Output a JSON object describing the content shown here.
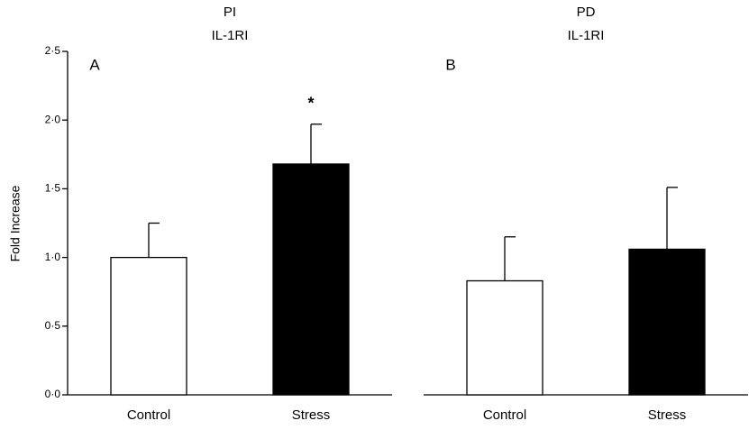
{
  "chart_data": [
    {
      "type": "bar",
      "title": "PI",
      "subtitle": "IL-1RI",
      "panel_label": "A",
      "ylabel": "Fold Increase",
      "categories": [
        "Control",
        "Stress"
      ],
      "values": [
        1.0,
        1.68
      ],
      "errors": [
        0.25,
        0.29
      ],
      "colors": [
        "#ffffff",
        "#000000"
      ],
      "annotations": [
        null,
        "*"
      ],
      "ylim": [
        0,
        2.5
      ],
      "yticks": [
        {
          "value": 0,
          "label": "0·0"
        },
        {
          "value": 0.5,
          "label": "0·5"
        },
        {
          "value": 1.0,
          "label": "1·0"
        },
        {
          "value": 1.5,
          "label": "1·5"
        },
        {
          "value": 2.0,
          "label": "2·0"
        },
        {
          "value": 2.5,
          "label": "2·5"
        }
      ]
    },
    {
      "type": "bar",
      "title": "PD",
      "subtitle": "IL-1RI",
      "panel_label": "B",
      "categories": [
        "Control",
        "Stress"
      ],
      "values": [
        0.83,
        1.06
      ],
      "errors": [
        0.32,
        0.45
      ],
      "colors": [
        "#ffffff",
        "#000000"
      ],
      "ylim": [
        0,
        2.5
      ]
    }
  ]
}
